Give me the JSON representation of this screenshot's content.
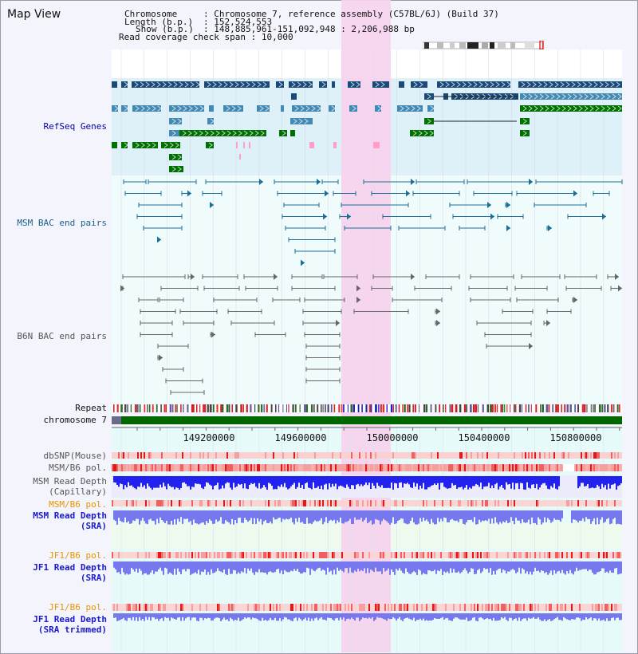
{
  "view": {
    "title": "Map View"
  },
  "header": {
    "chromosome_label": "Chromosome",
    "chromosome_value": "Chromosome 7, reference assembly (C57BL/6J) (Build 37)",
    "length_label": "Length (b.p.)",
    "length_value": "152,524,553",
    "show_label": "Show (b.p.)",
    "show_value": "148,885,961-151,092,948 : 2,206,988 bp",
    "coverage_label": "Read coverage check span",
    "coverage_value": "10,000"
  },
  "tracks": {
    "refseq": "RefSeq Genes",
    "msm_bac": "MSM BAC end pairs",
    "b6n_bac": "B6N BAC end pairs",
    "repeat": "Repeat",
    "chromosome": "chromosome 7",
    "dbsnp": "dbSNP(Mouse)",
    "msm_b6_pol_1": "MSM/B6 pol.",
    "msm_read_depth_cap_1": "MSM Read Depth",
    "msm_read_depth_cap_2": "(Capillary)",
    "msm_b6_pol_2": "MSM/B6 pol.",
    "msm_read_depth_sra_1": "MSM Read Depth",
    "msm_read_depth_sra_2": "(SRA)",
    "jf1_b6_pol_1": "JF1/B6 pol.",
    "jf1_read_depth_1": "JF1 Read Depth",
    "jf1_read_depth_2": "(SRA)",
    "jf1_b6_pol_2": "JF1/B6 pol.",
    "jf1_trimmed_1": "JF1 Read Depth",
    "jf1_trimmed_2": "(SRA trimmed)"
  },
  "axis": {
    "ticks": [
      "149200000",
      "149600000",
      "150000000",
      "150400000",
      "150800000"
    ]
  },
  "colors": {
    "refseq_bg": "#def0f8",
    "highlight": "#f6d2ee",
    "gene_navy": "#1a4a7a",
    "gene_steel": "#4488b4",
    "gene_green": "#007000",
    "msm_bac": "#1a6e9a",
    "b6n_bac": "#666666",
    "chromosome_bar": "#006600",
    "read_depth_blue": "#2222ee",
    "read_depth_light": "#7777ee"
  }
}
